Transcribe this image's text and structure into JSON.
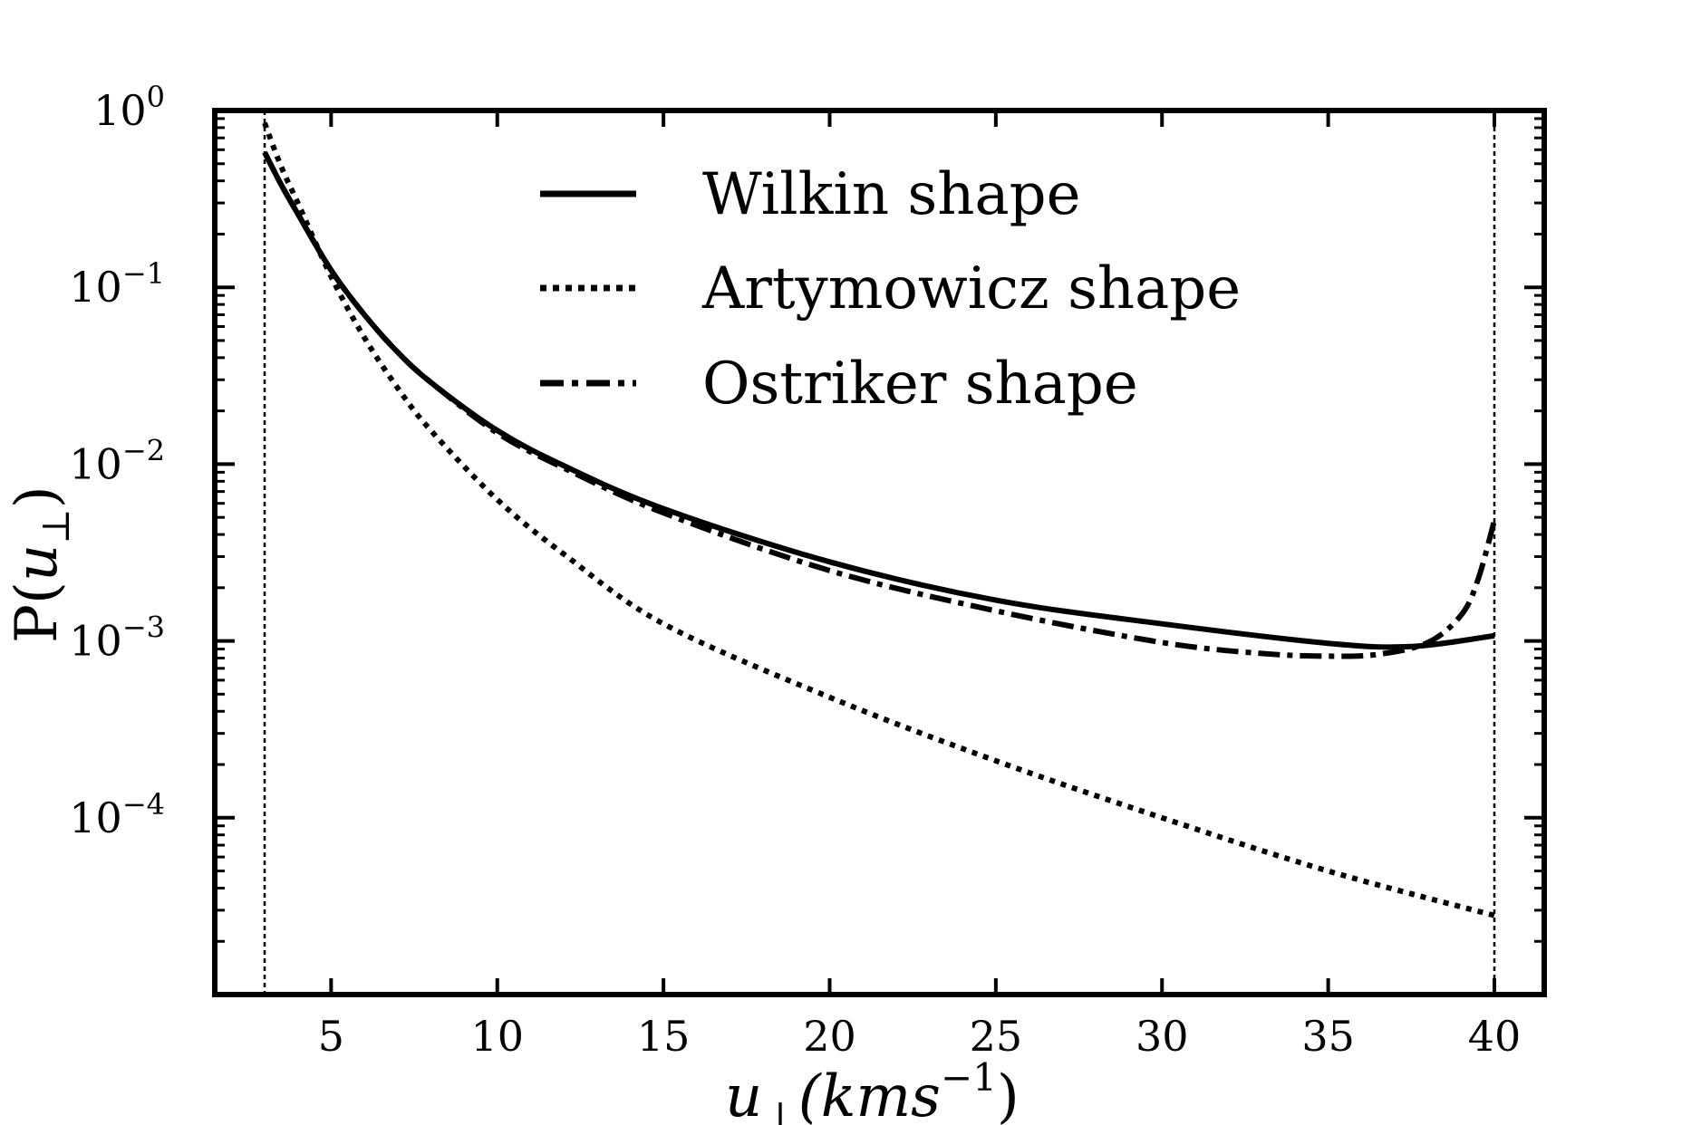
{
  "chart_data": {
    "type": "line",
    "title": "",
    "xlabel": {
      "base": "u",
      "sub": "⊥",
      "unit": "(kms",
      "unit_sup": "−1",
      "close": ")"
    },
    "ylabel": {
      "prefix": "P(",
      "base": "u",
      "sub": "⊥",
      "close": ")"
    },
    "xlim": [
      1.5,
      41.5
    ],
    "ylim_log10": [
      -5.0,
      0.0
    ],
    "x_ticks": [
      5,
      10,
      15,
      20,
      25,
      30,
      35,
      40
    ],
    "x_tick_labels": [
      "5",
      "10",
      "15",
      "20",
      "25",
      "30",
      "35",
      "40"
    ],
    "y_ticks": [
      {
        "exp": 0,
        "base": "10",
        "sup": "0"
      },
      {
        "exp": -1,
        "base": "10",
        "sup": "−1"
      },
      {
        "exp": -2,
        "base": "10",
        "sup": "−2"
      },
      {
        "exp": -3,
        "base": "10",
        "sup": "−3"
      },
      {
        "exp": -4,
        "base": "10",
        "sup": "−4"
      }
    ],
    "vlines": [
      3.0,
      40.0
    ],
    "legend": {
      "placement": "top-center"
    },
    "series": [
      {
        "name": "Wilkin shape",
        "style": "solid",
        "x": [
          3,
          3.5,
          4,
          5,
          6,
          7,
          8,
          10,
          12,
          15,
          20,
          25,
          30,
          35,
          37.5,
          40
        ],
        "y": [
          0.58,
          0.38,
          0.26,
          0.125,
          0.07,
          0.043,
          0.029,
          0.0155,
          0.0098,
          0.0056,
          0.0028,
          0.0017,
          0.00125,
          0.00097,
          0.00093,
          0.00107
        ]
      },
      {
        "name": "Artymowicz shape",
        "style": "dotted",
        "x": [
          3,
          3.5,
          4,
          5,
          6,
          7,
          8,
          10,
          12,
          15,
          20,
          25,
          30,
          35,
          40
        ],
        "y": [
          0.85,
          0.48,
          0.3,
          0.115,
          0.052,
          0.027,
          0.0155,
          0.0063,
          0.0031,
          0.00125,
          0.00048,
          0.00021,
          0.0001,
          5e-05,
          2.8e-05
        ]
      },
      {
        "name": "Ostriker shape",
        "style": "dashdot",
        "x": [
          3,
          3.5,
          4,
          5,
          6,
          7,
          8,
          10,
          12,
          15,
          20,
          25,
          30,
          33,
          35,
          36.5,
          38,
          39,
          39.5,
          40
        ],
        "y": [
          0.58,
          0.38,
          0.26,
          0.125,
          0.07,
          0.043,
          0.029,
          0.015,
          0.0095,
          0.0053,
          0.0025,
          0.00148,
          0.00098,
          0.00085,
          0.00082,
          0.00084,
          0.00098,
          0.0014,
          0.0022,
          0.0048
        ]
      }
    ]
  }
}
